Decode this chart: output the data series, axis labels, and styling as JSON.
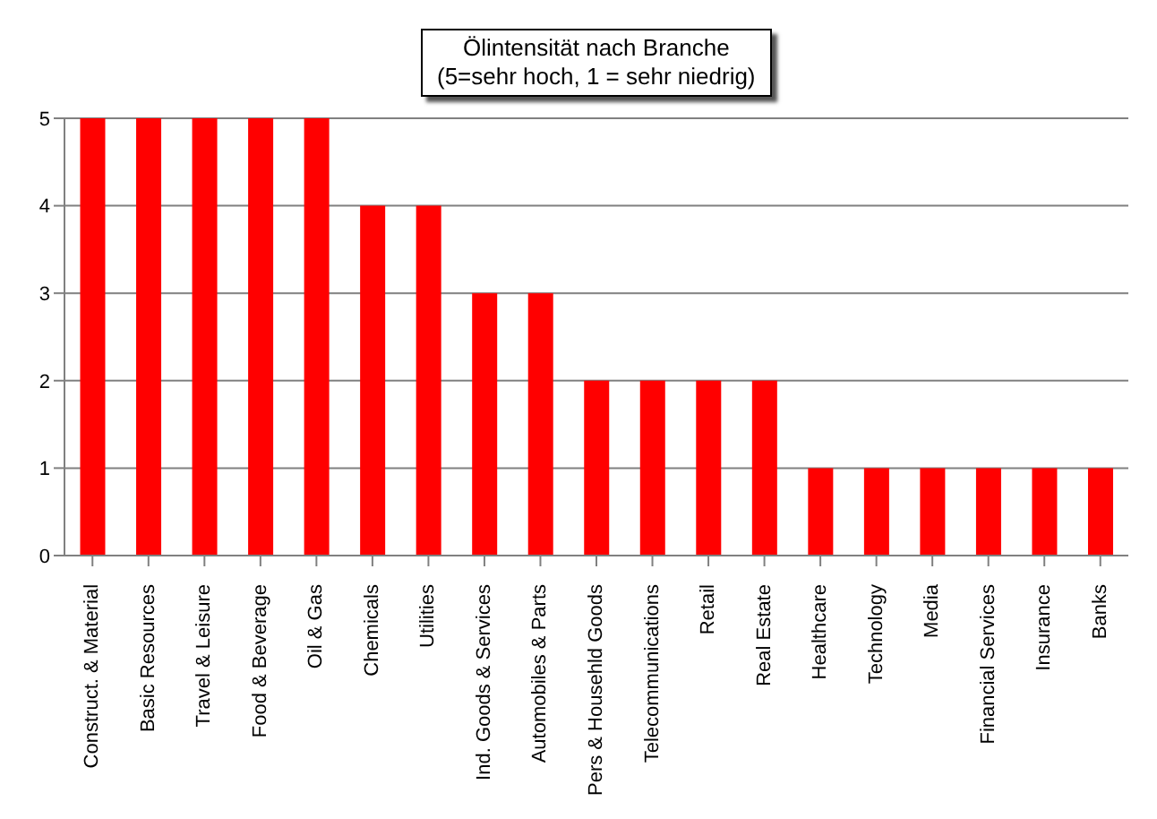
{
  "chart_data": {
    "type": "bar",
    "title": "Ölintensität nach Branche",
    "subtitle": "(5=sehr hoch, 1 = sehr niedrig)",
    "categories": [
      "Construct. & Material",
      "Basic Resources",
      "Travel & Leisure",
      "Food & Beverage",
      "Oil & Gas",
      "Chemicals",
      "Utilities",
      "Ind. Goods & Services",
      "Automobiles & Parts",
      "Pers & Househld Goods",
      "Telecommunications",
      "Retail",
      "Real Estate",
      "Healthcare",
      "Technology",
      "Media",
      "Financial Services",
      "Insurance",
      "Banks"
    ],
    "values": [
      5,
      5,
      5,
      5,
      5,
      4,
      4,
      3,
      3,
      2,
      2,
      2,
      2,
      1,
      1,
      1,
      1,
      1,
      1
    ],
    "color": "#ff0000",
    "ylim": [
      0,
      5
    ],
    "yticks": [
      0,
      1,
      2,
      3,
      4,
      5
    ],
    "grid": "y",
    "legend": false
  }
}
